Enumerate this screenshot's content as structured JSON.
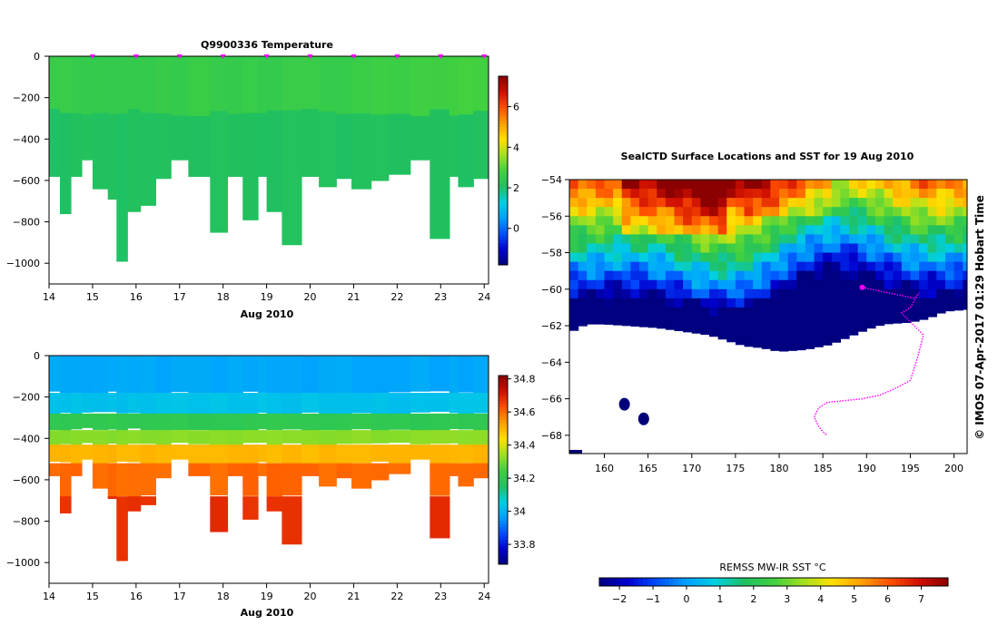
{
  "colors": {
    "scale": [
      "#000080",
      "#0000d0",
      "#0050ff",
      "#00a0ff",
      "#00d0e0",
      "#20c060",
      "#40d040",
      "#a0e020",
      "#ffe000",
      "#ffa000",
      "#ff5000",
      "#d01000",
      "#8b0000"
    ],
    "track": "#ff00ff"
  },
  "chart_data": [
    {
      "type": "heatmap",
      "id": "temperature",
      "title": "Q9900336  Temperature",
      "xlabel": "Aug 2010",
      "ylabel": "",
      "xlim": [
        14,
        24.1
      ],
      "ylim": [
        -1100,
        0
      ],
      "x_ticks": [
        14,
        15,
        16,
        17,
        18,
        19,
        20,
        21,
        22,
        23,
        24
      ],
      "y_ticks": [
        0,
        -200,
        -400,
        -600,
        -800,
        -1000
      ],
      "colorbar": {
        "min": -1.8,
        "max": 7.5,
        "ticks": [
          6,
          4,
          2,
          0
        ]
      },
      "surface_layer": {
        "top": 0,
        "bottom": -270,
        "value": 2.6
      },
      "deep_value": 2.1,
      "profile_times": [
        15,
        16,
        17,
        18,
        19,
        20,
        21,
        22,
        23,
        24
      ],
      "profile_max_depth": [
        [
          14.0,
          -580
        ],
        [
          14.25,
          -760
        ],
        [
          14.5,
          -580
        ],
        [
          14.75,
          -500
        ],
        [
          15.0,
          -640
        ],
        [
          15.35,
          -690
        ],
        [
          15.55,
          -990
        ],
        [
          15.8,
          -750
        ],
        [
          16.1,
          -720
        ],
        [
          16.45,
          -590
        ],
        [
          16.8,
          -500
        ],
        [
          17.2,
          -580
        ],
        [
          17.7,
          -850
        ],
        [
          18.1,
          -580
        ],
        [
          18.45,
          -790
        ],
        [
          18.8,
          -580
        ],
        [
          19.0,
          -750
        ],
        [
          19.35,
          -910
        ],
        [
          19.8,
          -580
        ],
        [
          20.2,
          -630
        ],
        [
          20.6,
          -590
        ],
        [
          20.95,
          -640
        ],
        [
          21.4,
          -600
        ],
        [
          21.8,
          -570
        ],
        [
          22.3,
          -500
        ],
        [
          22.75,
          -880
        ],
        [
          23.2,
          -580
        ],
        [
          23.4,
          -630
        ],
        [
          23.75,
          -590
        ],
        [
          24.1,
          -590
        ]
      ]
    },
    {
      "type": "heatmap",
      "id": "salinity",
      "title": "",
      "xlabel": "Aug 2010",
      "ylabel": "",
      "xlim": [
        14,
        24.1
      ],
      "ylim": [
        -1100,
        0
      ],
      "x_ticks": [
        14,
        15,
        16,
        17,
        18,
        19,
        20,
        21,
        22,
        23,
        24
      ],
      "y_ticks": [
        0,
        -200,
        -400,
        -600,
        -800,
        -1000
      ],
      "colorbar": {
        "min": 33.68,
        "max": 34.82,
        "ticks": [
          34.8,
          34.6,
          34.4,
          34.2,
          34,
          33.8
        ]
      },
      "layers": [
        {
          "top": 0,
          "bottom": -180,
          "value": 33.98
        },
        {
          "top": -180,
          "bottom": -280,
          "value": 34.03
        },
        {
          "top": -280,
          "bottom": -360,
          "value": 34.2
        },
        {
          "top": -360,
          "bottom": -430,
          "value": 34.32
        },
        {
          "top": -430,
          "bottom": -520,
          "value": 34.5
        },
        {
          "top": -520,
          "bottom": -680,
          "value": 34.6
        },
        {
          "top": -680,
          "bottom": -1000,
          "value": 34.68
        }
      ]
    },
    {
      "type": "heatmap",
      "id": "sst-map",
      "title": "SealCTD Surface Locations and SST for 19 Aug 2010",
      "xlabel": "",
      "ylabel": "",
      "xlim": [
        156,
        201.5
      ],
      "ylim": [
        -69,
        -54
      ],
      "x_ticks": [
        160,
        165,
        170,
        175,
        180,
        185,
        190,
        195,
        200
      ],
      "y_ticks": [
        -54,
        -56,
        -58,
        -60,
        -62,
        -64,
        -66,
        -68
      ],
      "colorbar": {
        "label": "REMSS MW-IR SST °C",
        "min": -2.6,
        "max": 7.8,
        "ticks": [
          -2,
          -1,
          0,
          1,
          2,
          3,
          4,
          5,
          6,
          7
        ]
      },
      "ice_edge": [
        [
          156,
          -62.4
        ],
        [
          157,
          -62.1
        ],
        [
          158,
          -61.9
        ],
        [
          160,
          -61.9
        ],
        [
          163,
          -62.0
        ],
        [
          166,
          -62.1
        ],
        [
          169,
          -62.3
        ],
        [
          172,
          -62.5
        ],
        [
          174,
          -62.8
        ],
        [
          176,
          -63.1
        ],
        [
          178,
          -63.2
        ],
        [
          180,
          -63.4
        ],
        [
          183,
          -63.3
        ],
        [
          186,
          -63.0
        ],
        [
          188,
          -62.6
        ],
        [
          190,
          -62.2
        ],
        [
          192,
          -61.9
        ],
        [
          195,
          -61.8
        ],
        [
          197,
          -61.6
        ],
        [
          199,
          -61.2
        ],
        [
          201.5,
          -61.1
        ]
      ],
      "islands": [
        [
          162.3,
          -66.3
        ],
        [
          164.5,
          -67.1
        ]
      ],
      "seal_track": [
        [
          189.5,
          -59.9
        ],
        [
          190.5,
          -60.0
        ],
        [
          191.5,
          -60.1
        ],
        [
          192.5,
          -60.2
        ],
        [
          193.5,
          -60.3
        ],
        [
          194.5,
          -60.4
        ],
        [
          195.5,
          -60.5
        ],
        [
          196,
          -60.2
        ],
        [
          195,
          -61.0
        ],
        [
          194.0,
          -61.3
        ],
        [
          196.5,
          -62.5
        ],
        [
          195.8,
          -63.8
        ],
        [
          195.0,
          -65.0
        ],
        [
          193.0,
          -65.5
        ],
        [
          191.5,
          -65.8
        ],
        [
          189.5,
          -66.0
        ],
        [
          187.5,
          -66.1
        ],
        [
          185.5,
          -66.2
        ],
        [
          184.5,
          -66.5
        ],
        [
          184,
          -67.0
        ],
        [
          184.5,
          -67.5
        ],
        [
          185,
          -67.8
        ],
        [
          185.5,
          -68.0
        ]
      ],
      "watermark": "© IMOS 07-Apr-2017 01:29 Hobart Time"
    }
  ]
}
